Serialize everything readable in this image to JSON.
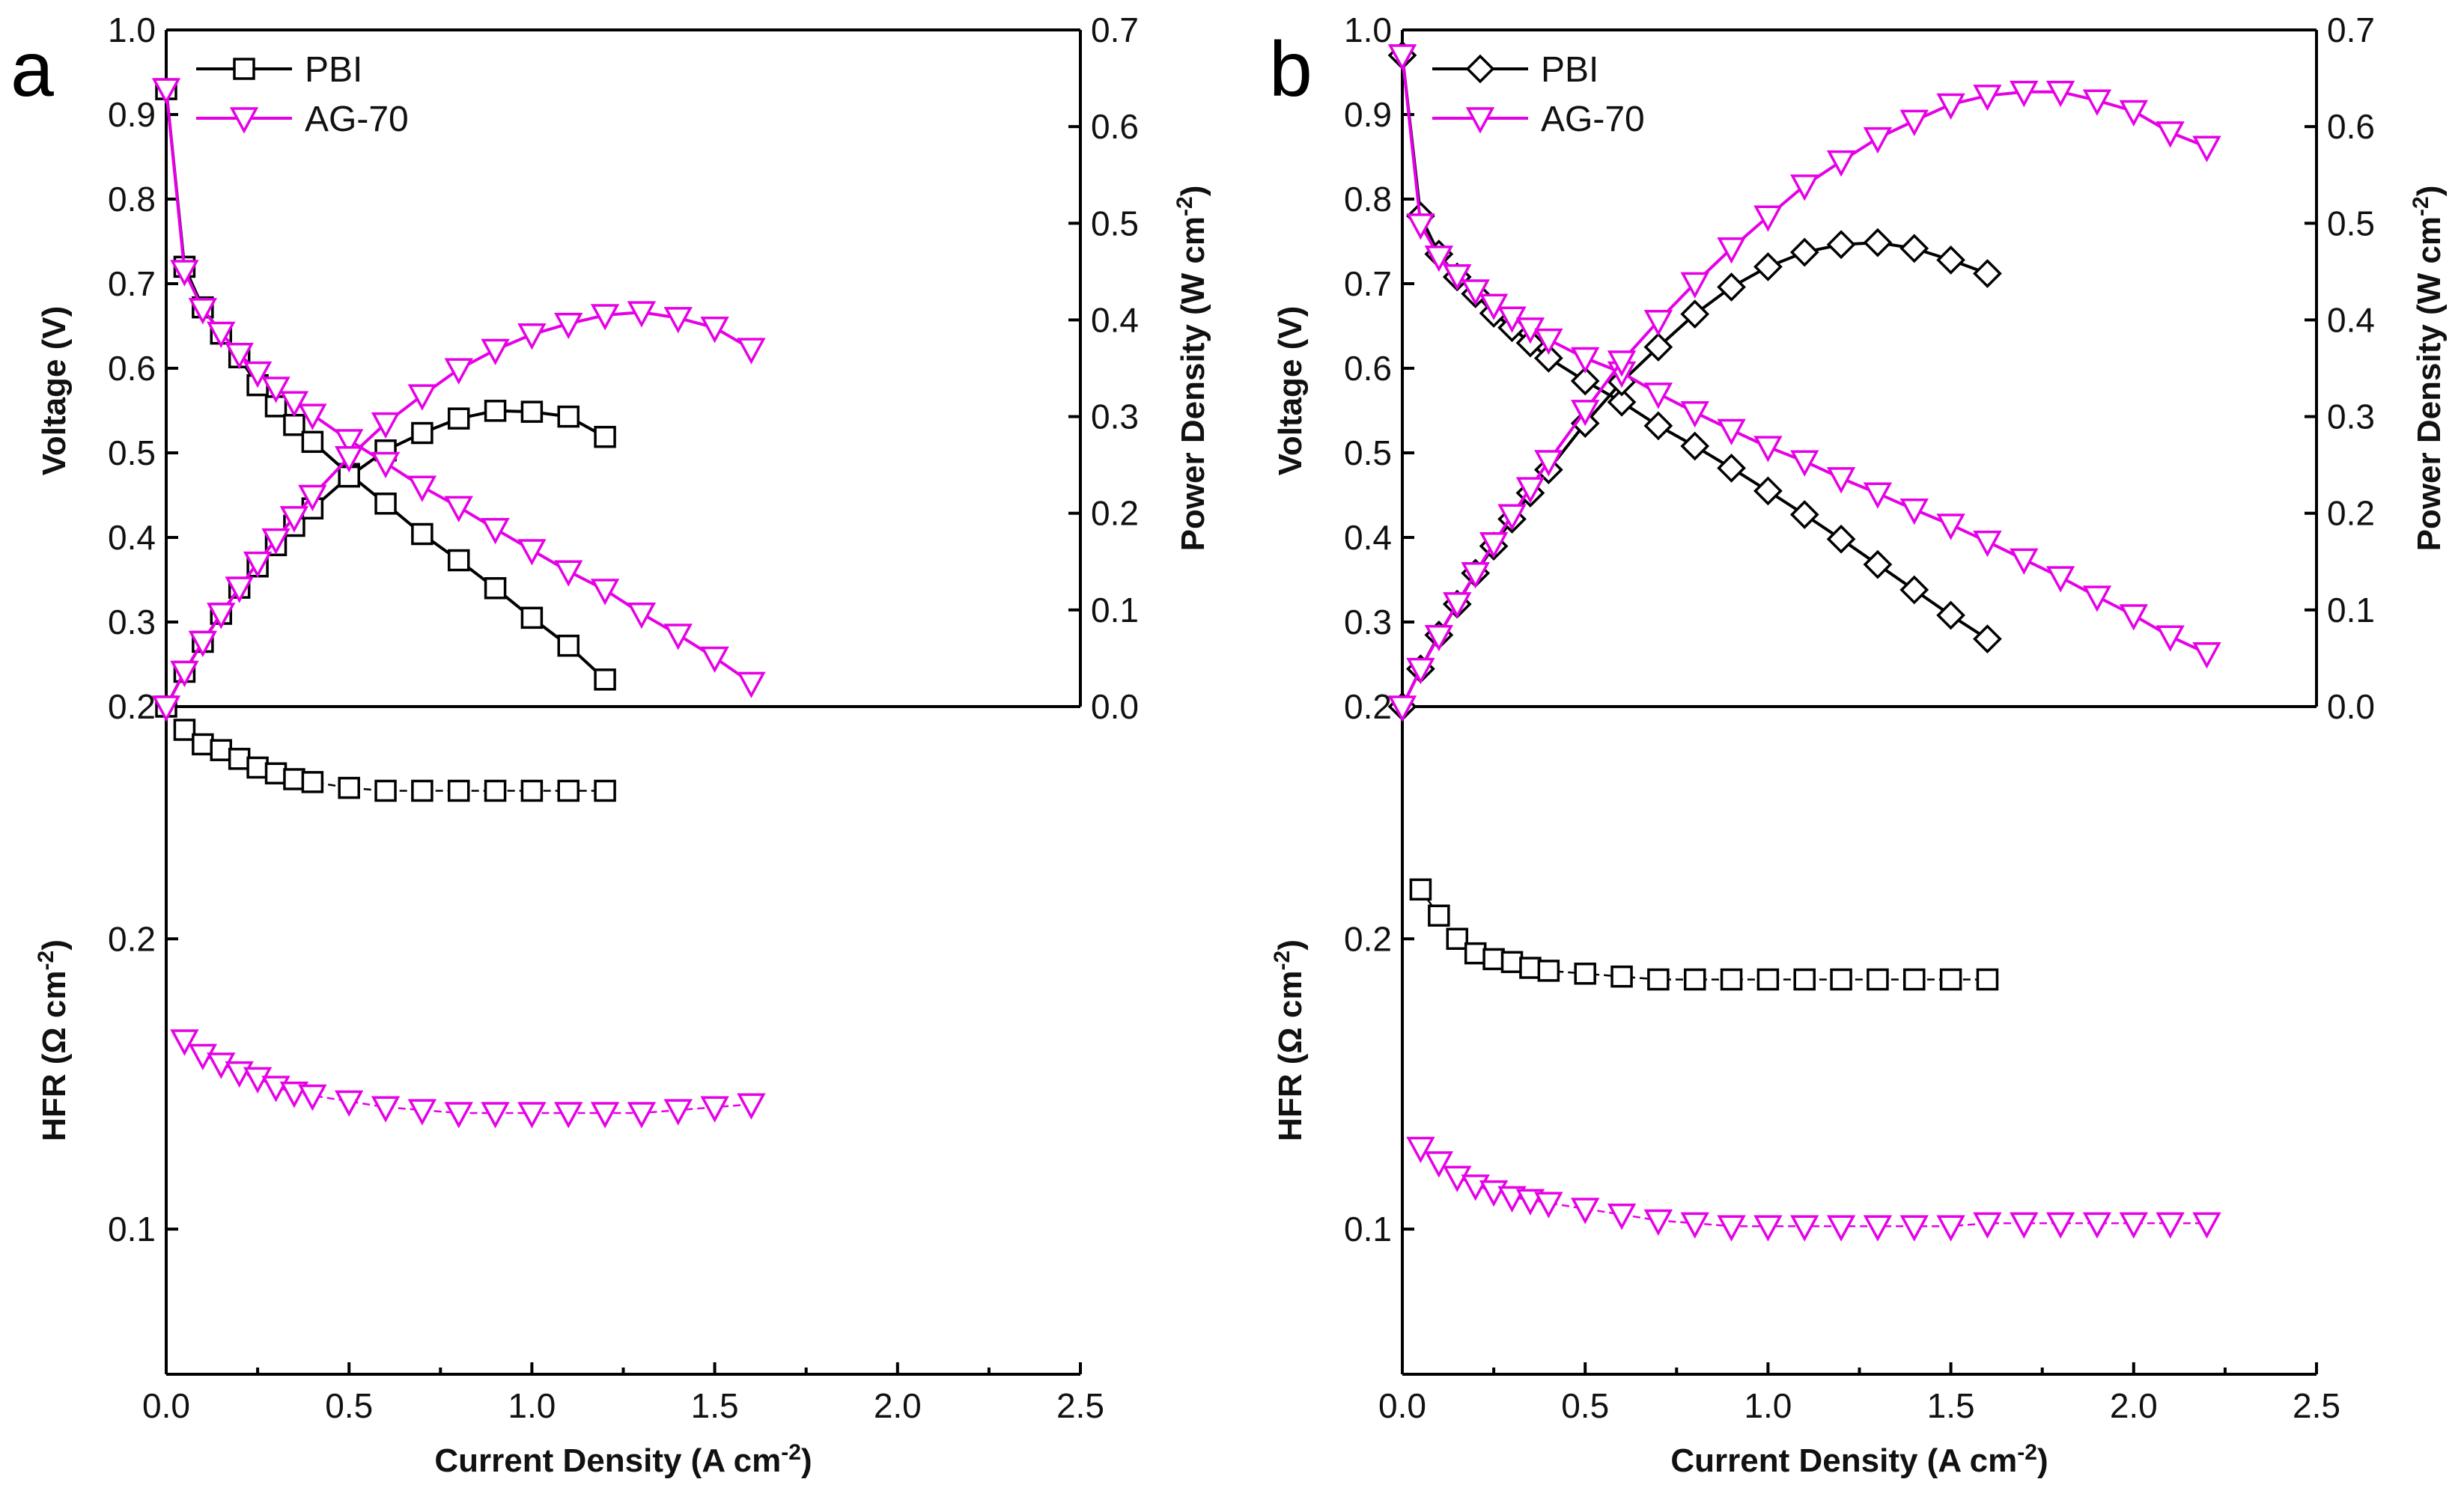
{
  "chart_data": [
    {
      "panel": "a",
      "type": "line",
      "xlabel": "Current Density (A cm",
      "xlabel_sup": "-2",
      "xlabel_end": ")",
      "xlim": [
        0,
        2.5
      ],
      "xticks": [
        "0.0",
        "0.5",
        "1.0",
        "1.5",
        "2.0",
        "2.5"
      ],
      "voltage_axis": {
        "label": "Voltage (V)",
        "ylim": [
          0.2,
          1.0
        ],
        "ticks": [
          "0.2",
          "0.3",
          "0.4",
          "0.5",
          "0.6",
          "0.7",
          "0.8",
          "0.9",
          "1.0"
        ]
      },
      "power_axis": {
        "label": "Power Density (W cm",
        "label_sup": "-2",
        "label_end": ")",
        "ylim": [
          0,
          0.7
        ],
        "ticks": [
          "0.0",
          "0.1",
          "0.2",
          "0.3",
          "0.4",
          "0.5",
          "0.6",
          "0.7"
        ]
      },
      "hfr_axis": {
        "label": "HFR (Ω cm",
        "label_sup": "-2",
        "label_end": ")",
        "ylim": [
          0.05,
          0.28
        ],
        "ticks": [
          "0.1",
          "0.2"
        ]
      },
      "legend": [
        {
          "name": "PBI",
          "color": "#000000",
          "marker": "square"
        },
        {
          "name": "AG-70",
          "color": "#e600e6",
          "marker": "triangle-down"
        }
      ],
      "series": [
        {
          "name": "PBI",
          "kind": "voltage",
          "color": "#000000",
          "marker": "square",
          "x": [
            0,
            0.05,
            0.1,
            0.15,
            0.2,
            0.25,
            0.3,
            0.35,
            0.4,
            0.5,
            0.6,
            0.7,
            0.8,
            0.9,
            1.0,
            1.1,
            1.2
          ],
          "y": [
            0.93,
            0.72,
            0.672,
            0.641,
            0.613,
            0.58,
            0.555,
            0.533,
            0.513,
            0.475,
            0.44,
            0.404,
            0.373,
            0.34,
            0.305,
            0.272,
            0.232
          ]
        },
        {
          "name": "PBI",
          "kind": "power",
          "color": "#000000",
          "marker": "square",
          "x": [
            0,
            0.05,
            0.1,
            0.15,
            0.2,
            0.25,
            0.3,
            0.35,
            0.4,
            0.5,
            0.6,
            0.7,
            0.8,
            0.9,
            1.0,
            1.1,
            1.2
          ],
          "y": [
            0.0,
            0.036,
            0.067,
            0.096,
            0.123,
            0.145,
            0.167,
            0.187,
            0.205,
            0.238,
            0.265,
            0.283,
            0.298,
            0.306,
            0.305,
            0.3,
            0.279
          ]
        },
        {
          "name": "AG-70",
          "kind": "voltage",
          "color": "#e600e6",
          "marker": "triangle-down",
          "x": [
            0,
            0.05,
            0.1,
            0.15,
            0.2,
            0.25,
            0.3,
            0.35,
            0.4,
            0.5,
            0.6,
            0.7,
            0.8,
            0.9,
            1.0,
            1.1,
            1.2,
            1.3,
            1.4,
            1.5,
            1.6
          ],
          "y": [
            0.93,
            0.715,
            0.67,
            0.642,
            0.617,
            0.595,
            0.577,
            0.56,
            0.545,
            0.515,
            0.488,
            0.46,
            0.436,
            0.41,
            0.385,
            0.36,
            0.338,
            0.31,
            0.285,
            0.258,
            0.228
          ]
        },
        {
          "name": "AG-70",
          "kind": "power",
          "color": "#e600e6",
          "marker": "triangle-down",
          "x": [
            0,
            0.05,
            0.1,
            0.15,
            0.2,
            0.25,
            0.3,
            0.35,
            0.4,
            0.5,
            0.6,
            0.7,
            0.8,
            0.9,
            1.0,
            1.1,
            1.2,
            1.3,
            1.4,
            1.5,
            1.6
          ],
          "y": [
            0.0,
            0.036,
            0.067,
            0.096,
            0.123,
            0.149,
            0.173,
            0.196,
            0.218,
            0.258,
            0.293,
            0.322,
            0.349,
            0.369,
            0.385,
            0.396,
            0.405,
            0.408,
            0.402,
            0.392,
            0.37
          ]
        },
        {
          "name": "PBI",
          "kind": "hfr",
          "color": "#000000",
          "marker": "square",
          "x": [
            0.05,
            0.1,
            0.15,
            0.2,
            0.25,
            0.3,
            0.35,
            0.4,
            0.5,
            0.6,
            0.7,
            0.8,
            0.9,
            1.0,
            1.1,
            1.2
          ],
          "y": [
            0.272,
            0.267,
            0.265,
            0.262,
            0.259,
            0.257,
            0.255,
            0.254,
            0.252,
            0.251,
            0.251,
            0.251,
            0.251,
            0.251,
            0.251,
            0.251
          ]
        },
        {
          "name": "AG-70",
          "kind": "hfr",
          "color": "#e600e6",
          "marker": "triangle-down",
          "x": [
            0.05,
            0.1,
            0.15,
            0.2,
            0.25,
            0.3,
            0.35,
            0.4,
            0.5,
            0.6,
            0.7,
            0.8,
            0.9,
            1.0,
            1.1,
            1.2,
            1.3,
            1.4,
            1.5,
            1.6
          ],
          "y": [
            0.165,
            0.16,
            0.157,
            0.154,
            0.152,
            0.149,
            0.147,
            0.146,
            0.144,
            0.142,
            0.141,
            0.14,
            0.14,
            0.14,
            0.14,
            0.14,
            0.14,
            0.141,
            0.142,
            0.143
          ]
        }
      ]
    },
    {
      "panel": "b",
      "type": "line",
      "xlabel": "Current Density (A cm",
      "xlabel_sup": "-2",
      "xlabel_end": ")",
      "xlim": [
        0,
        2.5
      ],
      "xticks": [
        "0.0",
        "0.5",
        "1.0",
        "1.5",
        "2.0",
        "2.5"
      ],
      "voltage_axis": {
        "label": "Voltage (V)",
        "ylim": [
          0.2,
          1.0
        ],
        "ticks": [
          "0.2",
          "0.3",
          "0.4",
          "0.5",
          "0.6",
          "0.7",
          "0.8",
          "0.9",
          "1.0"
        ]
      },
      "power_axis": {
        "label": "Power Density (W cm",
        "label_sup": "-2",
        "label_end": ")",
        "ylim": [
          0,
          0.7
        ],
        "ticks": [
          "0.0",
          "0.1",
          "0.2",
          "0.3",
          "0.4",
          "0.5",
          "0.6",
          "0.7"
        ]
      },
      "hfr_axis": {
        "label": "HFR (Ω cm",
        "label_sup": "-2",
        "label_end": ")",
        "ylim": [
          0.05,
          0.28
        ],
        "ticks": [
          "0.1",
          "0.2"
        ]
      },
      "legend": [
        {
          "name": "PBI",
          "color": "#000000",
          "marker": "diamond"
        },
        {
          "name": "AG-70",
          "color": "#e600e6",
          "marker": "triangle-down"
        }
      ],
      "series": [
        {
          "name": "PBI",
          "kind": "voltage",
          "color": "#000000",
          "marker": "diamond",
          "x": [
            0,
            0.05,
            0.1,
            0.15,
            0.2,
            0.25,
            0.3,
            0.35,
            0.4,
            0.5,
            0.6,
            0.7,
            0.8,
            0.9,
            1.0,
            1.1,
            1.2,
            1.3,
            1.4,
            1.5,
            1.6
          ],
          "y": [
            0.97,
            0.78,
            0.735,
            0.708,
            0.688,
            0.665,
            0.648,
            0.63,
            0.612,
            0.585,
            0.56,
            0.532,
            0.508,
            0.482,
            0.455,
            0.427,
            0.398,
            0.368,
            0.338,
            0.308,
            0.28
          ]
        },
        {
          "name": "PBI",
          "kind": "power",
          "color": "#000000",
          "marker": "diamond",
          "x": [
            0,
            0.05,
            0.1,
            0.15,
            0.2,
            0.25,
            0.3,
            0.35,
            0.4,
            0.5,
            0.6,
            0.7,
            0.8,
            0.9,
            1.0,
            1.1,
            1.2,
            1.3,
            1.4,
            1.5,
            1.6
          ],
          "y": [
            0.0,
            0.039,
            0.074,
            0.106,
            0.138,
            0.166,
            0.194,
            0.221,
            0.245,
            0.293,
            0.336,
            0.372,
            0.406,
            0.434,
            0.455,
            0.47,
            0.478,
            0.48,
            0.474,
            0.462,
            0.448
          ]
        },
        {
          "name": "AG-70",
          "kind": "voltage",
          "color": "#e600e6",
          "marker": "triangle-down",
          "x": [
            0,
            0.05,
            0.1,
            0.15,
            0.2,
            0.25,
            0.3,
            0.35,
            0.4,
            0.5,
            0.6,
            0.7,
            0.8,
            0.9,
            1.0,
            1.1,
            1.2,
            1.3,
            1.4,
            1.5,
            1.6,
            1.7,
            1.8,
            1.9,
            2.0,
            2.1,
            2.2
          ],
          "y": [
            0.97,
            0.77,
            0.732,
            0.71,
            0.692,
            0.675,
            0.66,
            0.647,
            0.634,
            0.612,
            0.595,
            0.57,
            0.548,
            0.527,
            0.507,
            0.49,
            0.47,
            0.452,
            0.433,
            0.415,
            0.395,
            0.374,
            0.353,
            0.33,
            0.308,
            0.283,
            0.263
          ]
        },
        {
          "name": "AG-70",
          "kind": "power",
          "color": "#e600e6",
          "marker": "triangle-down",
          "x": [
            0,
            0.05,
            0.1,
            0.15,
            0.2,
            0.25,
            0.3,
            0.35,
            0.4,
            0.5,
            0.6,
            0.7,
            0.8,
            0.9,
            1.0,
            1.1,
            1.2,
            1.3,
            1.4,
            1.5,
            1.6,
            1.7,
            1.8,
            1.9,
            2.0,
            2.1,
            2.2
          ],
          "y": [
            0.0,
            0.039,
            0.073,
            0.107,
            0.138,
            0.169,
            0.198,
            0.226,
            0.254,
            0.306,
            0.357,
            0.399,
            0.438,
            0.474,
            0.507,
            0.539,
            0.564,
            0.588,
            0.606,
            0.623,
            0.632,
            0.636,
            0.636,
            0.627,
            0.616,
            0.594,
            0.579
          ]
        },
        {
          "name": "PBI",
          "kind": "hfr",
          "color": "#000000",
          "marker": "square",
          "x": [
            0.05,
            0.1,
            0.15,
            0.2,
            0.25,
            0.3,
            0.35,
            0.4,
            0.5,
            0.6,
            0.7,
            0.8,
            0.9,
            1.0,
            1.1,
            1.2,
            1.3,
            1.4,
            1.5,
            1.6
          ],
          "y": [
            0.217,
            0.208,
            0.2,
            0.195,
            0.193,
            0.192,
            0.19,
            0.189,
            0.188,
            0.187,
            0.186,
            0.186,
            0.186,
            0.186,
            0.186,
            0.186,
            0.186,
            0.186,
            0.186,
            0.186
          ]
        },
        {
          "name": "AG-70",
          "kind": "hfr",
          "color": "#e600e6",
          "marker": "triangle-down",
          "x": [
            0.05,
            0.1,
            0.15,
            0.2,
            0.25,
            0.3,
            0.35,
            0.4,
            0.5,
            0.6,
            0.7,
            0.8,
            0.9,
            1.0,
            1.1,
            1.2,
            1.3,
            1.4,
            1.5,
            1.6,
            1.7,
            1.8,
            1.9,
            2.0,
            2.1,
            2.2
          ],
          "y": [
            0.128,
            0.123,
            0.118,
            0.115,
            0.113,
            0.111,
            0.11,
            0.109,
            0.107,
            0.105,
            0.103,
            0.102,
            0.101,
            0.101,
            0.101,
            0.101,
            0.101,
            0.101,
            0.101,
            0.102,
            0.102,
            0.102,
            0.102,
            0.102,
            0.102,
            0.102
          ]
        }
      ]
    }
  ]
}
